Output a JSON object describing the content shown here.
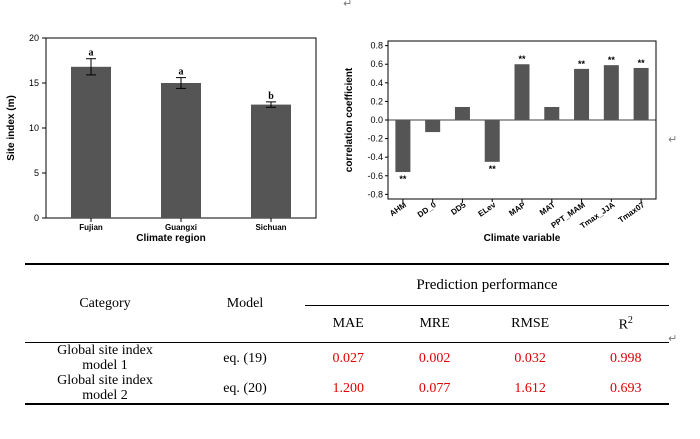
{
  "marks": {
    "return_symbol": "↵"
  },
  "chart_data": [
    {
      "type": "bar",
      "categories": [
        "Fujian",
        "Guangxi",
        "Sichuan"
      ],
      "values": [
        16.8,
        15.0,
        12.6
      ],
      "errors": [
        0.9,
        0.6,
        0.3
      ],
      "significance": [
        "a",
        "a",
        "b"
      ],
      "xlabel": "Climate region",
      "ylabel": "Site index (m)",
      "ylim": [
        0,
        20
      ],
      "yticks": [
        0,
        5,
        10,
        15,
        20
      ],
      "bar_color": "#555555"
    },
    {
      "type": "bar",
      "categories": [
        "AHM",
        "DD_0",
        "DD5",
        "ELev",
        "MAP",
        "MAT",
        "PPT_MAM",
        "Tmax_JJA",
        "Tmax07"
      ],
      "values": [
        -0.56,
        -0.13,
        0.14,
        -0.45,
        0.6,
        0.14,
        0.55,
        0.59,
        0.56
      ],
      "significance": [
        "**",
        "",
        "",
        "**",
        "**",
        "",
        "**",
        "**",
        "**"
      ],
      "xlabel": "Climate variable",
      "ylabel": "correlation coefficient",
      "ylim": [
        -0.85,
        0.85
      ],
      "yticks": [
        -0.8,
        -0.6,
        -0.4,
        -0.2,
        0.0,
        0.2,
        0.4,
        0.6,
        0.8
      ],
      "bar_color": "#555555"
    }
  ],
  "table": {
    "headers": {
      "category": "Category",
      "model": "Model",
      "group": "Prediction performance",
      "mae": "MAE",
      "mre": "MRE",
      "rmse": "RMSE",
      "r2_base": "R",
      "r2_sup": "2"
    },
    "rows": [
      {
        "category_line1": "Global site index",
        "category_line2": "model 1",
        "model": "eq. (19)",
        "mae": "0.027",
        "mre": "0.002",
        "rmse": "0.032",
        "r2": "0.998"
      },
      {
        "category_line1": "Global site index",
        "category_line2": "model 2",
        "model": "eq. (20)",
        "mae": "1.200",
        "mre": "0.077",
        "rmse": "1.612",
        "r2": "0.693"
      }
    ],
    "value_color": "#e00000"
  }
}
